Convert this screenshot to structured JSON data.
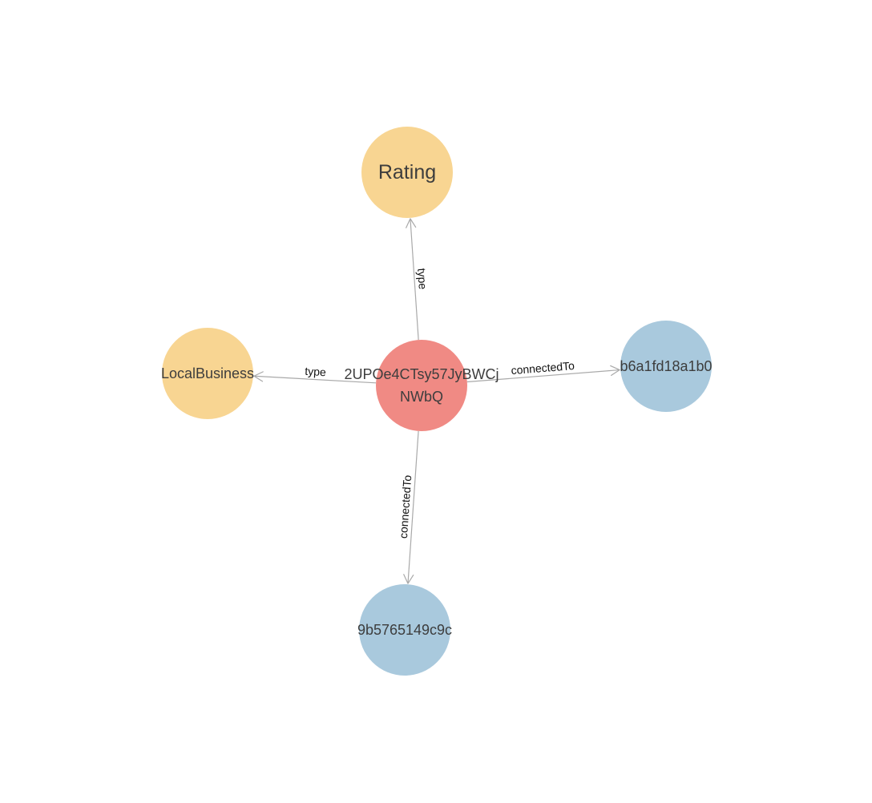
{
  "graph": {
    "nodes": [
      {
        "id": "center",
        "label_lines": [
          "2UPOe4CTsy57JyBWCj",
          "NWbQ"
        ],
        "color": "#f08a84",
        "font": 18
      },
      {
        "id": "rating",
        "label_lines": [
          "Rating"
        ],
        "color": "#f8d592",
        "font": 25
      },
      {
        "id": "localbusiness",
        "label_lines": [
          "LocalBusiness"
        ],
        "color": "#f8d592",
        "font": 18
      },
      {
        "id": "b6a1",
        "label_lines": [
          "b6a1fd18a1b0"
        ],
        "color": "#a9c9dd",
        "font": 18
      },
      {
        "id": "9b57",
        "label_lines": [
          "9b5765149c9c"
        ],
        "color": "#a9c9dd",
        "font": 18
      }
    ],
    "edges": [
      {
        "from": "center",
        "to": "rating",
        "label": "type"
      },
      {
        "from": "center",
        "to": "localbusiness",
        "label": "type"
      },
      {
        "from": "center",
        "to": "b6a1",
        "label": "connectedTo"
      },
      {
        "from": "center",
        "to": "9b57",
        "label": "connectedTo"
      }
    ],
    "colors": {
      "edge": "#a9a9a9",
      "edge_label": "#111111",
      "node_label": "#3d3d3d"
    }
  }
}
